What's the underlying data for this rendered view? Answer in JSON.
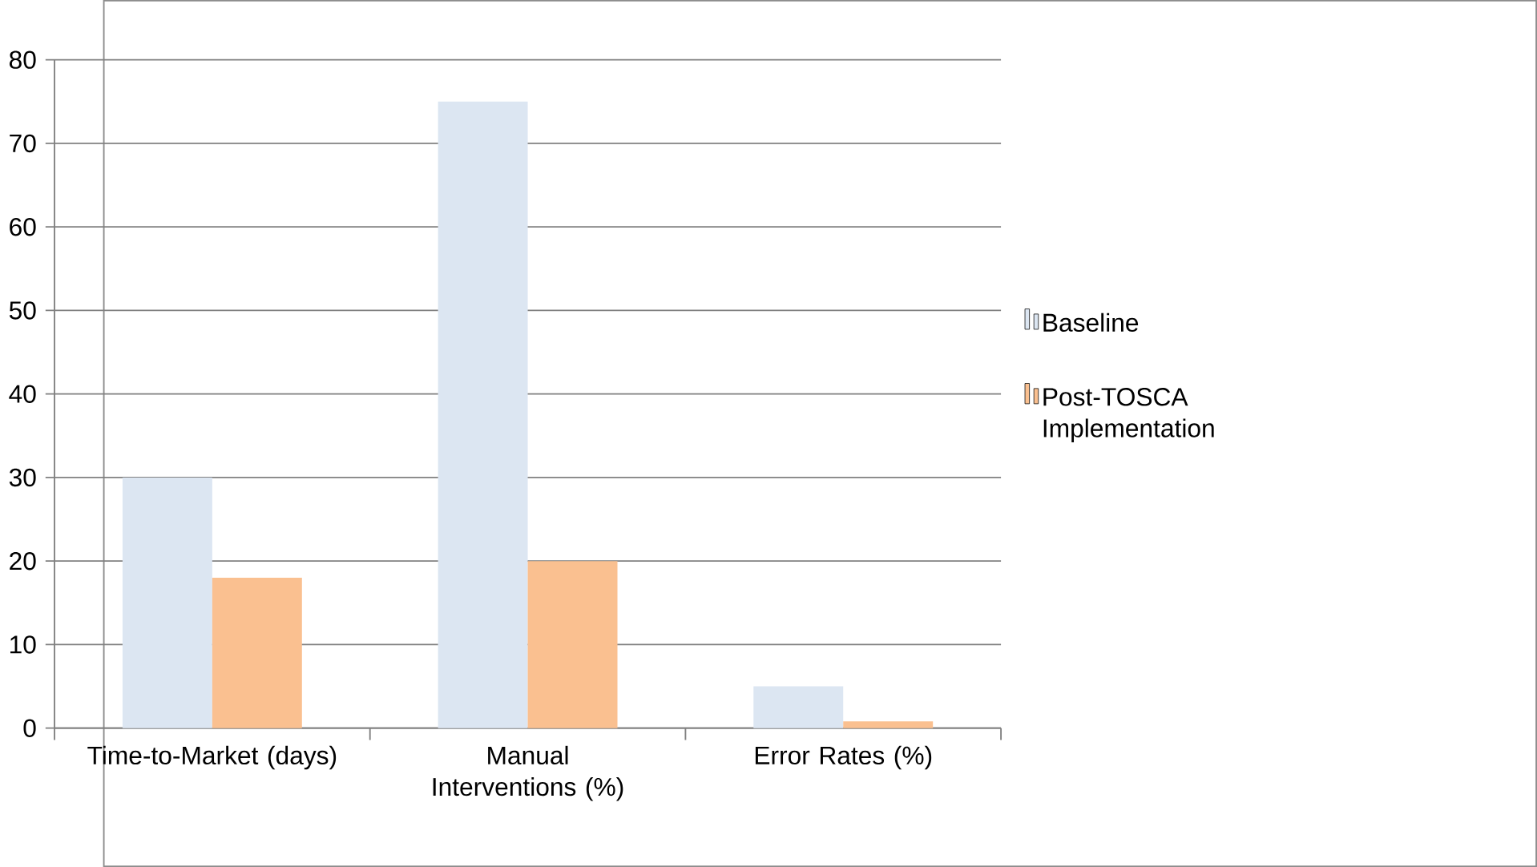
{
  "chart_data": {
    "type": "bar",
    "categories": [
      "Time-to-Market (days)",
      "Manual Interventions (%)",
      "Error Rates (%)"
    ],
    "series": [
      {
        "name": "Baseline",
        "color": "#dce6f2",
        "values": [
          30,
          75,
          5
        ]
      },
      {
        "name": "Post-TOSCA Implementation",
        "color": "#fac090",
        "values": [
          18,
          20,
          0.8
        ]
      }
    ],
    "ylim": [
      0,
      80
    ],
    "yticks": [
      0,
      10,
      20,
      30,
      40,
      50,
      60,
      70,
      80
    ],
    "grid": "y",
    "legend": "right"
  }
}
